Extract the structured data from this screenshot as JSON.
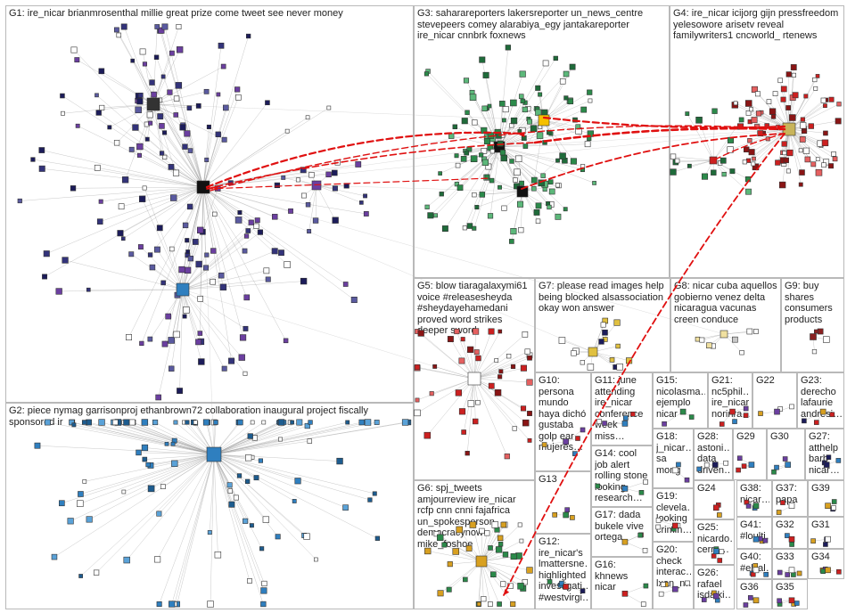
{
  "graph": {
    "groups": [
      {
        "id": "G1",
        "label": "G1: ire_nicar brianmrosenthal millie great prize come tweet see never money"
      },
      {
        "id": "G2",
        "label": "G2: piece nymag garrisonproj ethanbrown72 collaboration inaugural project fiscally sponsored ir"
      },
      {
        "id": "G3",
        "label": "G3: saharareporters lakersreporter un_news_centre stevepeers comey alarabiya_egy jantakareporter ire_nicar cnnbrk foxnews"
      },
      {
        "id": "G4",
        "label": "G4: ire_nicar icijorg gijn pressfreedom yelesowore arisetv reveal familywriters1 cncworld_ rtenews"
      },
      {
        "id": "G5",
        "label": "G5: blow tiaragalaxymi61 voice #releasesheyda #sheydayehamedani proved word strikes deeper sword"
      },
      {
        "id": "G6",
        "label": "G6: spj_tweets amjourreview ire_nicar rcfp cnn cnni fajafrica un_spokesperson democracynow mike_foshoe"
      },
      {
        "id": "G7",
        "label": "G7: please read images help being blocked alsassociation okay won answer"
      },
      {
        "id": "G8",
        "label": "G8: nicar cuba aquellos gobierno venez delta nicaragua vacunas creen conduce"
      },
      {
        "id": "G9",
        "label": "G9: buy shares consumers products"
      },
      {
        "id": "G10",
        "label": "G10: persona mundo haya dichó gustaba golp ear mujeres…"
      },
      {
        "id": "G11",
        "label": "G11: june attending ire_nicar conference week miss…"
      },
      {
        "id": "G12",
        "label": "G12: ire_nicar's lmattersne… highlighted investigati… #westvirgi…"
      },
      {
        "id": "G13",
        "label": "G13"
      },
      {
        "id": "G14",
        "label": "G14: cool job alert rolling stone looking research…"
      },
      {
        "id": "G15",
        "label": "G15: nicolasma… ejemplo nicar"
      },
      {
        "id": "G16",
        "label": "G16: khnews nicar"
      },
      {
        "id": "G17",
        "label": "G17: dada bukele vive ortega"
      },
      {
        "id": "G18",
        "label": "G18: j_nicar… sa mong"
      },
      {
        "id": "G19",
        "label": "G19: clevela… looking crimin…"
      },
      {
        "id": "G20",
        "label": "G20: check interac… lxan_n…"
      },
      {
        "id": "G21",
        "label": "G21: nc5phil… ire_nicar norinra…"
      },
      {
        "id": "G22",
        "label": "G22"
      },
      {
        "id": "G23",
        "label": "G23: derecho lafaurie andresi…"
      },
      {
        "id": "G24",
        "label": "G24"
      },
      {
        "id": "G25",
        "label": "G25: nicardo… cerra…"
      },
      {
        "id": "G26",
        "label": "G26: rafael isdaiki…"
      },
      {
        "id": "G27",
        "label": "G27: atthelp barb nicar…"
      },
      {
        "id": "G28",
        "label": "G28: astoni… data driven…"
      },
      {
        "id": "G29",
        "label": "G29"
      },
      {
        "id": "G30",
        "label": "G30"
      },
      {
        "id": "G31",
        "label": "G31"
      },
      {
        "id": "G32",
        "label": "G32"
      },
      {
        "id": "G33",
        "label": "G33"
      },
      {
        "id": "G34",
        "label": "G34"
      },
      {
        "id": "G35",
        "label": "G35"
      },
      {
        "id": "G36",
        "label": "G36"
      },
      {
        "id": "G37",
        "label": "G37: papa"
      },
      {
        "id": "G38",
        "label": "G38: nicar…"
      },
      {
        "id": "G39",
        "label": "G39"
      },
      {
        "id": "G40",
        "label": "G40: #elsal…"
      },
      {
        "id": "G41",
        "label": "G41: #loulti…"
      }
    ],
    "colors": {
      "cell_border": "#b9b9b9",
      "edge": "#9a9a9a",
      "inter_edge": "#e01010",
      "label": "#222222",
      "node_dark": "#1c1c5a",
      "node_blue": "#2f7fbf",
      "node_green": "#2b8a4a",
      "node_red": "#cc2020",
      "node_purple": "#6b3fa0"
    }
  }
}
